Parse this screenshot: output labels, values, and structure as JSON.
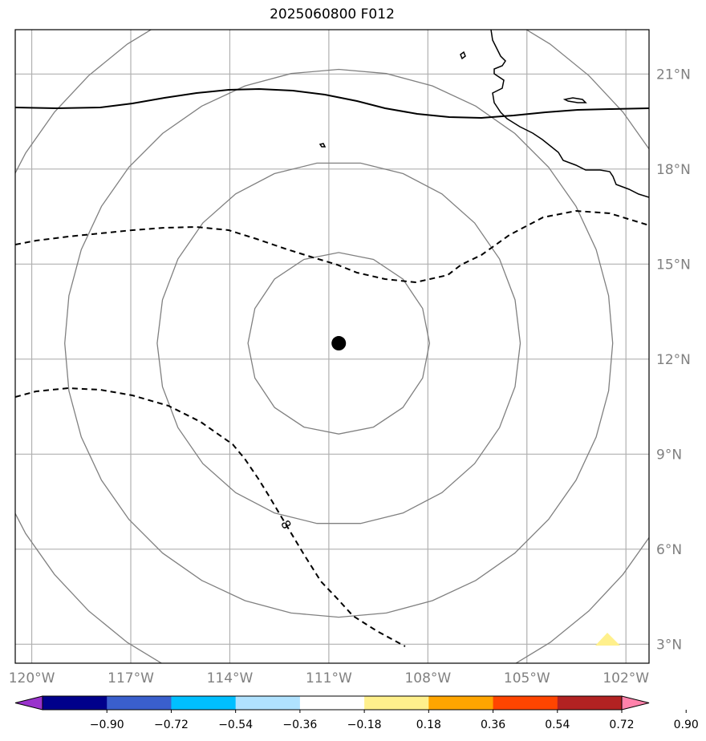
{
  "title": "2025060800 F012",
  "map": {
    "lon_range": [
      -120.5,
      -101.3
    ],
    "lat_range": [
      2.4,
      22.4
    ],
    "lat_ticks": [
      {
        "value": 3,
        "label": "3°N"
      },
      {
        "value": 6,
        "label": "6°N"
      },
      {
        "value": 9,
        "label": "9°N"
      },
      {
        "value": 12,
        "label": "12°N"
      },
      {
        "value": 15,
        "label": "15°N"
      },
      {
        "value": 18,
        "label": "18°N"
      },
      {
        "value": 21,
        "label": "21°N"
      }
    ],
    "lon_ticks": [
      {
        "value": -120,
        "label": "120°W"
      },
      {
        "value": -117,
        "label": "117°W"
      },
      {
        "value": -114,
        "label": "114°W"
      },
      {
        "value": -111,
        "label": "111°W"
      },
      {
        "value": -108,
        "label": "108°W"
      },
      {
        "value": -105,
        "label": "105°W"
      },
      {
        "value": -102,
        "label": "102°W"
      }
    ],
    "storm_center": {
      "lon": -110.7,
      "lat": 12.5
    },
    "range_rings_deg": [
      2.75,
      5.5,
      8.3,
      11.1
    ],
    "contour_label": "8",
    "colors": {
      "coastline": "#000000",
      "grid": "#b0b0b0",
      "rings": "#808080",
      "contour": "#000000"
    }
  },
  "colorbar": {
    "colors": [
      "#9932cc",
      "#00008b",
      "#3a5fcd",
      "#00bfff",
      "#b0e2ff",
      "#ffffff",
      "#fff08c",
      "#ffa500",
      "#ff4500",
      "#b22222",
      "#ff82ab"
    ],
    "labels": [
      "−0.90",
      "−0.72",
      "−0.54",
      "−0.36",
      "−0.18",
      "0.18",
      "0.36",
      "0.54",
      "0.72",
      "0.90"
    ]
  }
}
